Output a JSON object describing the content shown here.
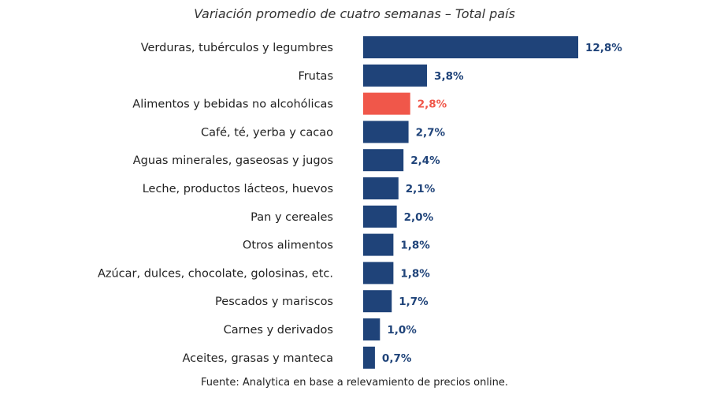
{
  "chart_data": {
    "type": "bar",
    "orientation": "horizontal",
    "title": "Variación promedio de cuatro semanas – Total país",
    "source": "Fuente: Analytica en base a relevamiento de precios online.",
    "unit": "%",
    "categories": [
      "Verduras, tubérculos y legumbres",
      "Frutas",
      "Alimentos y bebidas no alcohólicas",
      "Café, té, yerba y cacao",
      "Aguas minerales, gaseosas y jugos",
      "Leche, productos lácteos, huevos",
      "Pan y cereales",
      "Otros alimentos",
      "Azúcar, dulces, chocolate, golosinas, etc.",
      "Pescados y mariscos",
      "Carnes y derivados",
      "Aceites, grasas y manteca"
    ],
    "values": [
      12.8,
      3.8,
      2.8,
      2.7,
      2.4,
      2.1,
      2.0,
      1.8,
      1.8,
      1.7,
      1.0,
      0.7
    ],
    "value_labels": [
      "12,8%",
      "3,8%",
      "2,8%",
      "2,7%",
      "2,4%",
      "2,1%",
      "2,0%",
      "1,8%",
      "1,8%",
      "1,7%",
      "1,0%",
      "0,7%"
    ],
    "highlight_index": 2,
    "colors": {
      "bar": "#1f4379",
      "highlight": "#f0574a",
      "category_text": "#222222"
    },
    "xlim": [
      0,
      12.8
    ],
    "grid": false,
    "legend": "none"
  }
}
